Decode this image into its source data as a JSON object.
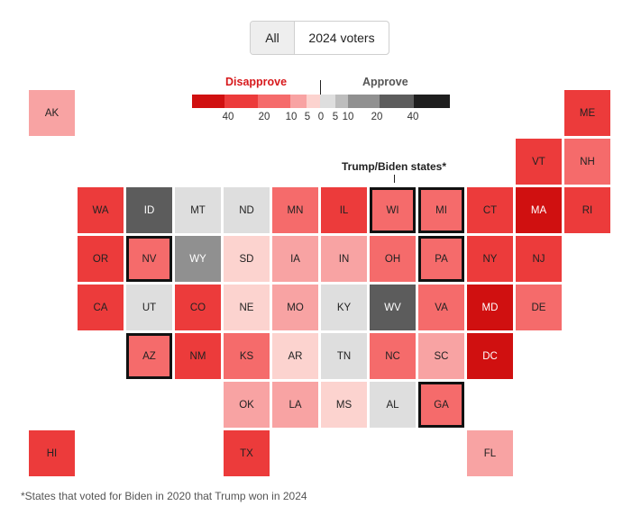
{
  "toggle": {
    "all_label": "All",
    "voters_label": "2024 voters",
    "selected": "All"
  },
  "legend": {
    "disapprove_label": "Disapprove",
    "approve_label": "Approve",
    "disapprove_color": "#d7191c",
    "approve_color": "#555555",
    "segments": [
      {
        "color": "#d01010"
      },
      {
        "color": "#ec3b3b"
      },
      {
        "color": "#f56b6b"
      },
      {
        "color": "#f8a3a3"
      },
      {
        "color": "#fcd3cf"
      },
      {
        "color": "#dedede"
      },
      {
        "color": "#bdbdbd"
      },
      {
        "color": "#909090"
      },
      {
        "color": "#5c5c5c"
      },
      {
        "color": "#1e1e1e"
      }
    ],
    "ticks": [
      "40",
      "20",
      "10",
      "5",
      "0",
      "5",
      "10",
      "20",
      "40"
    ]
  },
  "annotation": {
    "label": "Trump/Biden states*"
  },
  "footnote": "*States that voted for Biden in 2020 that Trump won in 2024",
  "map_data": {
    "type": "tile-grid",
    "states": [
      {
        "abbr": "AK",
        "color": "#f8a3a3",
        "text": "#222222",
        "flip": false
      },
      {
        "abbr": "ME",
        "color": "#ec3b3b",
        "text": "#222222",
        "flip": false
      },
      {
        "abbr": "VT",
        "color": "#ec3b3b",
        "text": "#222222",
        "flip": false
      },
      {
        "abbr": "NH",
        "color": "#f56b6b",
        "text": "#222222",
        "flip": false
      },
      {
        "abbr": "WA",
        "color": "#ec3b3b",
        "text": "#222222",
        "flip": false
      },
      {
        "abbr": "ID",
        "color": "#5c5c5c",
        "text": "#ffffff",
        "flip": false
      },
      {
        "abbr": "MT",
        "color": "#dedede",
        "text": "#222222",
        "flip": false
      },
      {
        "abbr": "ND",
        "color": "#dedede",
        "text": "#222222",
        "flip": false
      },
      {
        "abbr": "MN",
        "color": "#f56b6b",
        "text": "#222222",
        "flip": false
      },
      {
        "abbr": "IL",
        "color": "#ec3b3b",
        "text": "#222222",
        "flip": false
      },
      {
        "abbr": "WI",
        "color": "#f56b6b",
        "text": "#222222",
        "flip": true
      },
      {
        "abbr": "MI",
        "color": "#f56b6b",
        "text": "#222222",
        "flip": true
      },
      {
        "abbr": "CT",
        "color": "#ec3b3b",
        "text": "#222222",
        "flip": false
      },
      {
        "abbr": "MA",
        "color": "#d01010",
        "text": "#ffffff",
        "flip": false
      },
      {
        "abbr": "RI",
        "color": "#ec3b3b",
        "text": "#222222",
        "flip": false
      },
      {
        "abbr": "OR",
        "color": "#ec3b3b",
        "text": "#222222",
        "flip": false
      },
      {
        "abbr": "NV",
        "color": "#f56b6b",
        "text": "#222222",
        "flip": true
      },
      {
        "abbr": "WY",
        "color": "#909090",
        "text": "#ffffff",
        "flip": false
      },
      {
        "abbr": "SD",
        "color": "#fcd3cf",
        "text": "#222222",
        "flip": false
      },
      {
        "abbr": "IA",
        "color": "#f8a3a3",
        "text": "#222222",
        "flip": false
      },
      {
        "abbr": "IN",
        "color": "#f8a3a3",
        "text": "#222222",
        "flip": false
      },
      {
        "abbr": "OH",
        "color": "#f56b6b",
        "text": "#222222",
        "flip": false
      },
      {
        "abbr": "PA",
        "color": "#f56b6b",
        "text": "#222222",
        "flip": true
      },
      {
        "abbr": "NY",
        "color": "#ec3b3b",
        "text": "#222222",
        "flip": false
      },
      {
        "abbr": "NJ",
        "color": "#ec3b3b",
        "text": "#222222",
        "flip": false
      },
      {
        "abbr": "CA",
        "color": "#ec3b3b",
        "text": "#222222",
        "flip": false
      },
      {
        "abbr": "UT",
        "color": "#dedede",
        "text": "#222222",
        "flip": false
      },
      {
        "abbr": "CO",
        "color": "#ec3b3b",
        "text": "#222222",
        "flip": false
      },
      {
        "abbr": "NE",
        "color": "#fcd3cf",
        "text": "#222222",
        "flip": false
      },
      {
        "abbr": "MO",
        "color": "#f8a3a3",
        "text": "#222222",
        "flip": false
      },
      {
        "abbr": "KY",
        "color": "#dedede",
        "text": "#222222",
        "flip": false
      },
      {
        "abbr": "WV",
        "color": "#5c5c5c",
        "text": "#ffffff",
        "flip": false
      },
      {
        "abbr": "VA",
        "color": "#f56b6b",
        "text": "#222222",
        "flip": false
      },
      {
        "abbr": "MD",
        "color": "#d01010",
        "text": "#ffffff",
        "flip": false
      },
      {
        "abbr": "DE",
        "color": "#f56b6b",
        "text": "#222222",
        "flip": false
      },
      {
        "abbr": "AZ",
        "color": "#f56b6b",
        "text": "#222222",
        "flip": true
      },
      {
        "abbr": "NM",
        "color": "#ec3b3b",
        "text": "#222222",
        "flip": false
      },
      {
        "abbr": "KS",
        "color": "#f56b6b",
        "text": "#222222",
        "flip": false
      },
      {
        "abbr": "AR",
        "color": "#fcd3cf",
        "text": "#222222",
        "flip": false
      },
      {
        "abbr": "TN",
        "color": "#dedede",
        "text": "#222222",
        "flip": false
      },
      {
        "abbr": "NC",
        "color": "#f56b6b",
        "text": "#222222",
        "flip": false
      },
      {
        "abbr": "SC",
        "color": "#f8a3a3",
        "text": "#222222",
        "flip": false
      },
      {
        "abbr": "DC",
        "color": "#d01010",
        "text": "#ffffff",
        "flip": false
      },
      {
        "abbr": "OK",
        "color": "#f8a3a3",
        "text": "#222222",
        "flip": false
      },
      {
        "abbr": "LA",
        "color": "#f8a3a3",
        "text": "#222222",
        "flip": false
      },
      {
        "abbr": "MS",
        "color": "#fcd3cf",
        "text": "#222222",
        "flip": false
      },
      {
        "abbr": "AL",
        "color": "#dedede",
        "text": "#222222",
        "flip": false
      },
      {
        "abbr": "GA",
        "color": "#f56b6b",
        "text": "#222222",
        "flip": true
      },
      {
        "abbr": "HI",
        "color": "#ec3b3b",
        "text": "#222222",
        "flip": false
      },
      {
        "abbr": "TX",
        "color": "#ec3b3b",
        "text": "#222222",
        "flip": false
      },
      {
        "abbr": "FL",
        "color": "#f8a3a3",
        "text": "#222222",
        "flip": false
      }
    ]
  }
}
